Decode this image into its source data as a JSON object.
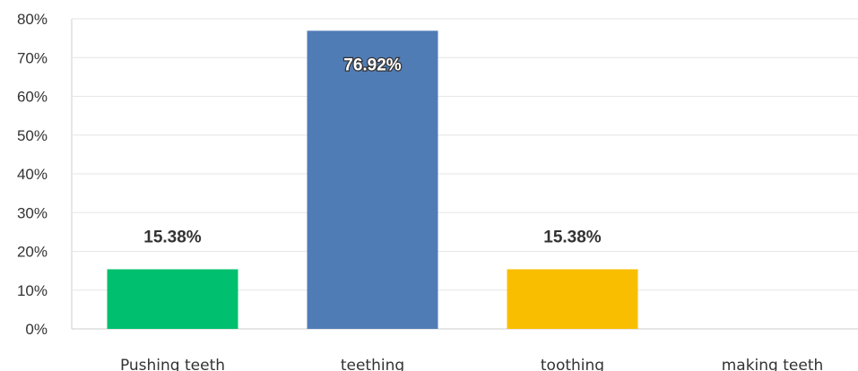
{
  "chart_data": {
    "type": "bar",
    "categories": [
      "Pushing teeth",
      "teething",
      "toothing",
      "making teeth"
    ],
    "values": [
      15.38,
      76.92,
      15.38,
      0
    ],
    "data_labels": [
      "15.38%",
      "76.92%",
      "15.38%",
      ""
    ],
    "colors": [
      "#00bf6f",
      "#507cb6",
      "#f9be00",
      "#cccccc"
    ],
    "y_ticks": [
      0,
      10,
      20,
      30,
      40,
      50,
      60,
      70,
      80
    ],
    "y_tick_labels": [
      "0%",
      "10%",
      "20%",
      "30%",
      "40%",
      "50%",
      "60%",
      "70%",
      "80%"
    ],
    "ylim": [
      0,
      80
    ],
    "grid": true,
    "title": "",
    "xlabel": "",
    "ylabel": ""
  }
}
